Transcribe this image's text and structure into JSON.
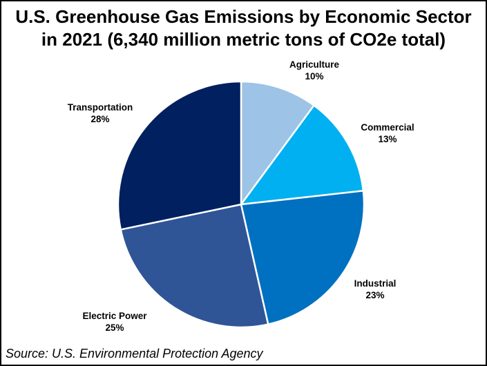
{
  "chart_data": {
    "type": "pie",
    "title": [
      "U.S. Greenhouse Gas Emissions by Economic Sector",
      "in 2021 (6,340 million metric tons of CO2e total)"
    ],
    "categories": [
      "Agriculture",
      "Commercial",
      "Industrial",
      "Electric Power",
      "Transportation"
    ],
    "values": [
      10,
      13,
      23,
      25,
      28
    ],
    "value_labels": [
      "10%",
      "13%",
      "23%",
      "25%",
      "28%"
    ],
    "unit": "%",
    "colors": [
      "#9dc3e6",
      "#00b0f0",
      "#0070c0",
      "#2f5597",
      "#002060"
    ],
    "start_angle_deg": 0,
    "direction": "clockwise",
    "legend": "none"
  },
  "source": "Source: U.S. Environmental Protection Agency"
}
